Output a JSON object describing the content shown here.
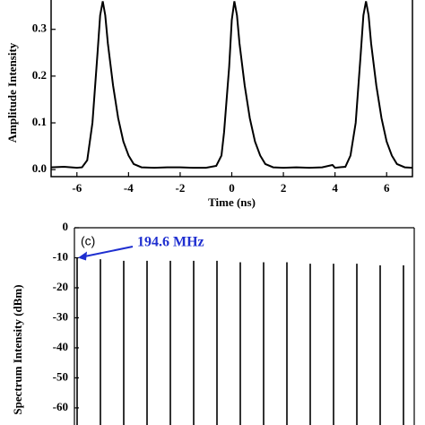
{
  "chart_data": [
    {
      "type": "line",
      "xlabel": "Time (ns)",
      "ylabel": "Amplitude Intensity",
      "xlim": [
        -7,
        7
      ],
      "ylim": [
        -0.015,
        0.38
      ],
      "xticks": [
        -6,
        -4,
        -2,
        0,
        2,
        4,
        6
      ],
      "yticks": [
        {
          "value": 0,
          "label": "0.0"
        },
        0.1,
        0.2,
        0.3
      ],
      "series": [
        {
          "color": "#000000",
          "x": [
            -7,
            -6.5,
            -6,
            -5.8,
            -5.6,
            -5.4,
            -5.2,
            -5.1,
            -5.0,
            -4.9,
            -4.8,
            -4.6,
            -4.4,
            -4.2,
            -4.0,
            -3.8,
            -3.5,
            -3,
            -2.5,
            -2,
            -1.5,
            -1,
            -0.6,
            -0.4,
            -0.3,
            -0.1,
            0,
            0.1,
            0.2,
            0.3,
            0.5,
            0.7,
            0.9,
            1.1,
            1.3,
            1.6,
            2,
            2.5,
            3,
            3.5,
            3.9,
            4,
            4.4,
            4.6,
            4.8,
            5.0,
            5.1,
            5.2,
            5.3,
            5.4,
            5.6,
            5.8,
            6,
            6.2,
            6.4,
            6.7,
            7
          ],
          "values": [
            0.005,
            0.006,
            0.004,
            0.005,
            0.02,
            0.1,
            0.25,
            0.33,
            0.36,
            0.33,
            0.27,
            0.18,
            0.11,
            0.06,
            0.03,
            0.012,
            0.005,
            0.004,
            0.005,
            0.005,
            0.004,
            0.004,
            0.008,
            0.03,
            0.08,
            0.22,
            0.32,
            0.36,
            0.33,
            0.27,
            0.18,
            0.11,
            0.06,
            0.03,
            0.012,
            0.005,
            0.004,
            0.005,
            0.004,
            0.005,
            0.01,
            0.004,
            0.006,
            0.03,
            0.1,
            0.25,
            0.33,
            0.36,
            0.33,
            0.27,
            0.18,
            0.11,
            0.06,
            0.03,
            0.012,
            0.005,
            0.004
          ]
        }
      ]
    },
    {
      "type": "spectrum",
      "ylabel": "Spectrum Intensity (dBm)",
      "panel_label": "(c)",
      "annotation": "194.6 MHz",
      "annotation_color": "#1f2fd0",
      "color": "#000000",
      "ylim": [
        -66,
        0
      ],
      "yticks": [
        0,
        -10,
        -20,
        -30,
        -40,
        -50,
        -60
      ],
      "categories": [
        null,
        null,
        null,
        null,
        null,
        null,
        null,
        null,
        null,
        null,
        null,
        null,
        null,
        null,
        null
      ],
      "values": [
        -10,
        -10.5,
        -11,
        -11,
        -11,
        -11,
        -11,
        -11.5,
        -11.5,
        -11.5,
        -12,
        -12,
        -12,
        -12.5,
        -12.5
      ]
    }
  ]
}
